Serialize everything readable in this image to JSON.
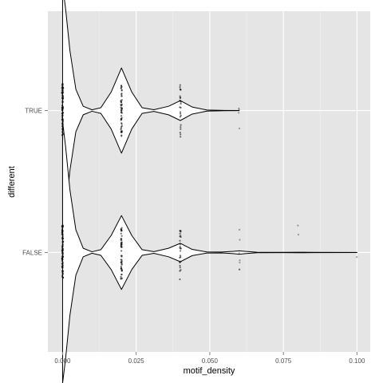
{
  "chart_data": {
    "type": "violin",
    "orientation": "horizontal",
    "title": "",
    "xlabel": "motif_density",
    "ylabel": "different",
    "xlim": [
      -0.005,
      0.1045
    ],
    "x_ticks": [
      0.0,
      0.025,
      0.05,
      0.075,
      0.1
    ],
    "x_tick_labels": [
      "0.000",
      "0.025",
      "0.050",
      "0.075",
      "0.100"
    ],
    "categories": [
      "FALSE",
      "TRUE"
    ],
    "grid": true,
    "legend": "none",
    "colors": {
      "panel": "#e5e5e5",
      "grid_major": "#ffffff",
      "grid_minor": "#f2f2f2",
      "violin_fill": "#ffffff",
      "violin_line": "#000000",
      "point": "#000000"
    },
    "violin_max_half_width": 0.5,
    "series": [
      {
        "category": "TRUE",
        "density": [
          [
            0.0,
            0.88
          ],
          [
            0.001,
            0.72
          ],
          [
            0.0025,
            0.42
          ],
          [
            0.0045,
            0.15
          ],
          [
            0.007,
            0.03
          ],
          [
            0.01,
            0.005
          ],
          [
            0.013,
            0.02
          ],
          [
            0.0165,
            0.13
          ],
          [
            0.02,
            0.3
          ],
          [
            0.0235,
            0.13
          ],
          [
            0.027,
            0.02
          ],
          [
            0.031,
            0.006
          ],
          [
            0.036,
            0.03
          ],
          [
            0.04,
            0.07
          ],
          [
            0.044,
            0.025
          ],
          [
            0.049,
            0.004
          ],
          [
            0.055,
            0.001
          ],
          [
            0.06,
            0.0005
          ]
        ],
        "points": [
          {
            "x": 0.0,
            "n": 80
          },
          {
            "x": 0.02,
            "n": 50
          },
          {
            "x": 0.04,
            "n": 24
          },
          {
            "x": 0.06,
            "n": 4
          }
        ]
      },
      {
        "category": "FALSE",
        "density": [
          [
            0.0,
            0.92
          ],
          [
            0.001,
            0.75
          ],
          [
            0.0025,
            0.44
          ],
          [
            0.0045,
            0.16
          ],
          [
            0.007,
            0.03
          ],
          [
            0.01,
            0.005
          ],
          [
            0.013,
            0.02
          ],
          [
            0.0165,
            0.12
          ],
          [
            0.02,
            0.26
          ],
          [
            0.0235,
            0.12
          ],
          [
            0.027,
            0.02
          ],
          [
            0.031,
            0.006
          ],
          [
            0.036,
            0.03
          ],
          [
            0.04,
            0.065
          ],
          [
            0.044,
            0.022
          ],
          [
            0.049,
            0.004
          ],
          [
            0.054,
            0.003
          ],
          [
            0.058,
            0.008
          ],
          [
            0.06,
            0.012
          ],
          [
            0.062,
            0.008
          ],
          [
            0.066,
            0.002
          ],
          [
            0.075,
            0.001
          ],
          [
            0.08,
            0.002
          ],
          [
            0.085,
            0.001
          ],
          [
            0.1,
            0.0005
          ]
        ],
        "points": [
          {
            "x": 0.0,
            "n": 90
          },
          {
            "x": 0.02,
            "n": 50
          },
          {
            "x": 0.04,
            "n": 26
          },
          {
            "x": 0.06,
            "n": 7
          },
          {
            "x": 0.08,
            "n": 2
          },
          {
            "x": 0.1,
            "n": 1
          }
        ]
      }
    ]
  }
}
